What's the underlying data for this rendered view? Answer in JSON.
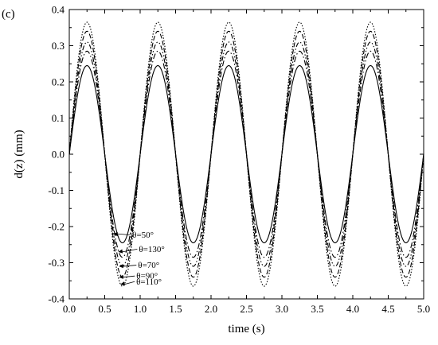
{
  "panel_label": "(c)",
  "chart_data": {
    "type": "line",
    "title": "",
    "xlabel": "time (s)",
    "ylabel": "d(z) (mm)",
    "xlim": [
      0.0,
      5.0
    ],
    "ylim": [
      -0.4,
      0.4
    ],
    "xticks": [
      "0.0",
      "0.5",
      "1.0",
      "1.5",
      "2.0",
      "2.5",
      "3.0",
      "3.5",
      "4.0",
      "4.5",
      "5.0"
    ],
    "yticks": [
      "0.4",
      "0.3",
      "0.2",
      "0.1",
      "0.0",
      "-0.1",
      "-0.2",
      "-0.3",
      "-0.4"
    ],
    "frequency_hz": 1.0,
    "x_sampled": [
      0.0,
      0.25,
      0.5,
      0.75,
      1.0,
      1.25,
      1.5,
      1.75,
      2.0,
      2.25,
      2.5,
      2.75,
      3.0,
      3.25,
      3.5,
      3.75,
      4.0,
      4.25,
      4.5,
      4.75,
      5.0
    ],
    "series": [
      {
        "name": "θ=50°",
        "amplitude": 0.245,
        "dash": "solid",
        "color": "#000000",
        "values": [
          0,
          0.245,
          0,
          -0.245,
          0,
          0.245,
          0,
          -0.245,
          0,
          0.245,
          0,
          -0.245,
          0,
          0.245,
          0,
          -0.245,
          0,
          0.245,
          0,
          -0.245,
          0
        ]
      },
      {
        "name": "θ=130°",
        "amplitude": 0.285,
        "dash": "dash-dot",
        "color": "#000000",
        "values": [
          0,
          0.285,
          0,
          -0.285,
          0,
          0.285,
          0,
          -0.285,
          0,
          0.285,
          0,
          -0.285,
          0,
          0.285,
          0,
          -0.285,
          0,
          0.285,
          0,
          -0.285,
          0
        ]
      },
      {
        "name": "θ=70°",
        "amplitude": 0.31,
        "dash": "dash-dot-dot",
        "color": "#000000",
        "values": [
          0,
          0.31,
          0,
          -0.31,
          0,
          0.31,
          0,
          -0.31,
          0,
          0.31,
          0,
          -0.31,
          0,
          0.31,
          0,
          -0.31,
          0,
          0.31,
          0,
          -0.31,
          0
        ]
      },
      {
        "name": "θ=90°",
        "amplitude": 0.34,
        "dash": "long-dash",
        "color": "#000000",
        "values": [
          0,
          0.34,
          0,
          -0.34,
          0,
          0.34,
          0,
          -0.34,
          0,
          0.34,
          0,
          -0.34,
          0,
          0.34,
          0,
          -0.34,
          0,
          0.34,
          0,
          -0.34,
          0
        ]
      },
      {
        "name": "θ=110°",
        "amplitude": 0.365,
        "dash": "dotted",
        "color": "#000000",
        "values": [
          0,
          0.365,
          0,
          -0.365,
          0,
          0.365,
          0,
          -0.365,
          0,
          0.365,
          0,
          -0.365,
          0,
          0.365,
          0,
          -0.365,
          0,
          0.365,
          0,
          -0.365,
          0
        ]
      }
    ],
    "annotations": [
      {
        "text": "θ=50°",
        "arrow_to": [
          0.62,
          -0.22
        ]
      },
      {
        "text": "θ=130°",
        "arrow_to": [
          0.69,
          -0.27
        ]
      },
      {
        "text": "θ=70°",
        "arrow_to": [
          0.7,
          -0.31
        ]
      },
      {
        "text": "θ=90°",
        "arrow_to": [
          0.7,
          -0.34
        ]
      },
      {
        "text": "θ=110°",
        "arrow_to": [
          0.72,
          -0.36
        ]
      }
    ],
    "grid": false,
    "legend": "none (series labeled by arrow annotations)"
  }
}
